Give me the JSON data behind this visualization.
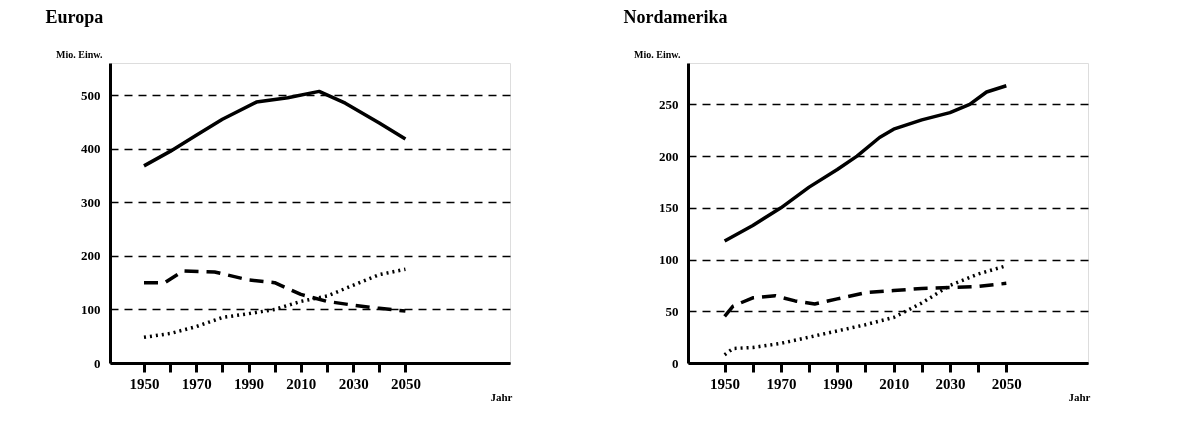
{
  "chart_data": [
    {
      "type": "line",
      "title": "Europa",
      "ylabel": "Mio. Einw.",
      "xlabel": "Jahr",
      "xlim": [
        1937,
        2090
      ],
      "ylim": [
        0,
        560
      ],
      "xticks": [
        1950,
        {
          "value": 1960,
          "label": null
        },
        1970,
        {
          "value": 1980,
          "label": null
        },
        1990,
        {
          "value": 2000,
          "label": null
        },
        2010,
        {
          "value": 2020,
          "label": null
        },
        2030,
        {
          "value": 2040,
          "label": null
        },
        2050
      ],
      "yticks": [
        0,
        100,
        200,
        300,
        400,
        500
      ],
      "grid": "y",
      "legend": false,
      "series": [
        {
          "color": "#000000",
          "line_style": "solid",
          "x": [
            1950,
            1960,
            1970,
            1980,
            1993,
            2005,
            2017,
            2027,
            2040,
            2050
          ],
          "values": [
            368,
            395,
            425,
            455,
            487,
            495,
            507,
            485,
            448,
            418
          ]
        },
        {
          "color": "#000000",
          "line_style": "dashed",
          "x": [
            1950,
            1958,
            1965,
            1977,
            1990,
            2000,
            2010,
            2020,
            2030,
            2040,
            2050
          ],
          "values": [
            150,
            150,
            172,
            170,
            155,
            150,
            128,
            115,
            108,
            102,
            97
          ]
        },
        {
          "color": "#000000",
          "line_style": "dotted",
          "x": [
            1950,
            1960,
            1970,
            1980,
            1990,
            2000,
            2010,
            2020,
            2030,
            2040,
            2050
          ],
          "values": [
            48,
            55,
            68,
            85,
            92,
            100,
            115,
            125,
            145,
            165,
            175
          ]
        }
      ]
    },
    {
      "type": "line",
      "title": "Nordamerika",
      "ylabel": "Mio. Einw.",
      "xlabel": "Jahr",
      "xlim": [
        1937,
        2079
      ],
      "ylim": [
        0,
        290
      ],
      "xticks": [
        1950,
        {
          "value": 1960,
          "label": null
        },
        1970,
        {
          "value": 1980,
          "label": null
        },
        1990,
        {
          "value": 2000,
          "label": null
        },
        2010,
        {
          "value": 2020,
          "label": null
        },
        2030,
        {
          "value": 2040,
          "label": null
        },
        2050
      ],
      "yticks": [
        0,
        50,
        100,
        150,
        200,
        250
      ],
      "grid": "y",
      "legend": false,
      "series": [
        {
          "color": "#000000",
          "line_style": "solid",
          "x": [
            1950,
            1960,
            1970,
            1980,
            1990,
            1997,
            2005,
            2010,
            2020,
            2030,
            2037,
            2043,
            2050
          ],
          "values": [
            118,
            133,
            150,
            170,
            187,
            200,
            218,
            226,
            235,
            242,
            250,
            262,
            268
          ]
        },
        {
          "color": "#000000",
          "line_style": "dashed",
          "x": [
            1950,
            1953,
            1960,
            1968,
            1975,
            1982,
            1990,
            2000,
            2010,
            2020,
            2030,
            2040,
            2050
          ],
          "values": [
            45,
            55,
            63,
            65,
            60,
            57,
            62,
            68,
            70,
            72,
            73,
            74,
            77
          ]
        },
        {
          "color": "#000000",
          "line_style": "dotted",
          "x": [
            1950,
            1953,
            1960,
            1970,
            1980,
            1990,
            2000,
            2010,
            2020,
            2030,
            2040,
            2050
          ],
          "values": [
            8,
            14,
            15,
            19,
            25,
            31,
            37,
            44,
            58,
            75,
            86,
            94
          ]
        }
      ]
    }
  ]
}
